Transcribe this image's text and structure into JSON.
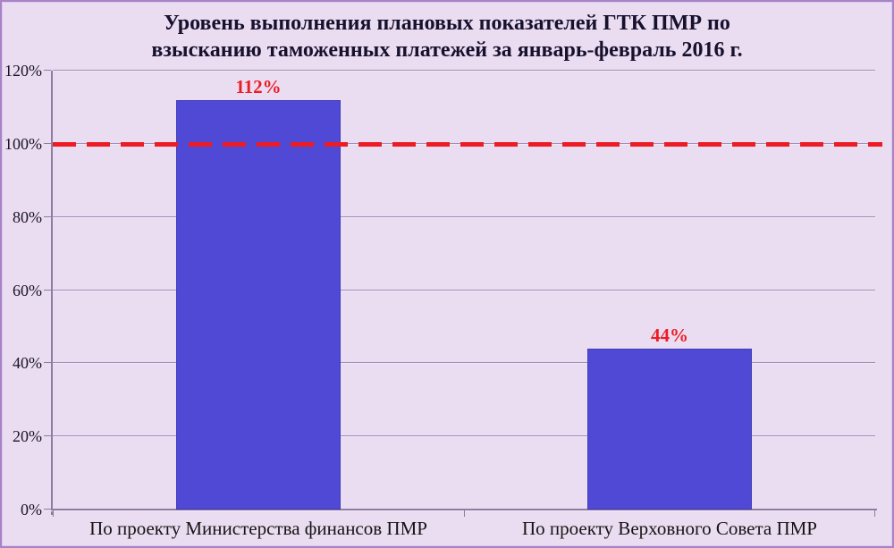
{
  "page": {
    "background": "#EADDF1",
    "border_color": "#A882C6"
  },
  "chart_data": {
    "type": "bar",
    "title_line1": "Уровень выполнения плановых показателей ГТК ПМР по",
    "title_line2": "взысканию таможенных платежей  за январь-февраль 2016 г.",
    "categories": [
      "По проекту Министерства финансов ПМР",
      "По проекту Верховного Совета ПМР"
    ],
    "values": [
      112,
      44
    ],
    "value_labels": [
      "112%",
      "44%"
    ],
    "y_tick_labels": [
      "0%",
      "20%",
      "40%",
      "60%",
      "80%",
      "100%",
      "120%"
    ],
    "y_tick_values": [
      0,
      20,
      40,
      60,
      80,
      100,
      120
    ],
    "ylim": [
      0,
      120
    ],
    "grid": true,
    "legend": "none",
    "reference_line": {
      "value": 100,
      "style": "dashed"
    },
    "colors": {
      "bar_fill": "#4F49D6",
      "bar_border": "#423CB8",
      "value_label": "#ED1C24",
      "reference_line": "#ED1C24",
      "gridline": "#A08EB8",
      "gridline_bevel": "#F2E9F8",
      "axis": "#8E7CA2",
      "title_text": "#17112E",
      "tick_text": "#1A1427",
      "category_text": "#141414"
    }
  }
}
